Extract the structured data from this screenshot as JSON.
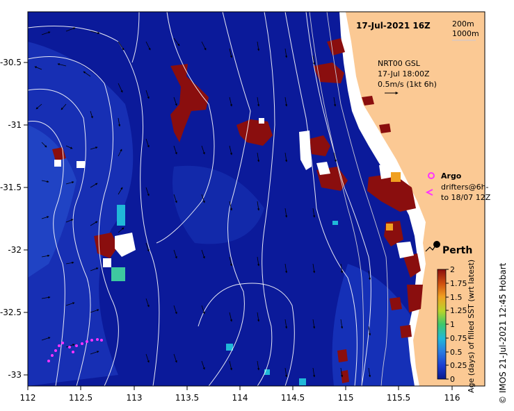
{
  "map": {
    "title": "17-Jul-2021 16Z",
    "x_ticks": [
      "112",
      "112.5",
      "113",
      "113.5",
      "114",
      "114.5",
      "115",
      "115.5",
      "116"
    ],
    "y_ticks": [
      "-30.5",
      "-31",
      "-31.5",
      "-32",
      "-32.5",
      "-33"
    ],
    "depth_contours": {
      "c200": "200m",
      "c1000": "1000m"
    },
    "current_legend": {
      "line1": "NRT00 GSL",
      "line2": "17-Jul 18:00Z",
      "line3": "0.5m/s (1kt 6h)"
    },
    "argo_label": "Argo",
    "drifter_label_1": "drifters@6h-",
    "drifter_label_2": "to 18/07 12Z",
    "city": "Perth",
    "credit": "©  IMOS 21-Jul-2021 12:45 Hobart",
    "colorbar": {
      "title": "Age (days) of filled SST (wrt latest)",
      "ticks": [
        "0",
        "0.25",
        "0.5",
        "0.75",
        "1",
        "1.25",
        "1.5",
        "1.75",
        "2"
      ]
    },
    "colors": {
      "ocean": "#0b1a9a",
      "ocean_light": "#1f3fc0",
      "land": "#fbc994",
      "old_data": "#8a0e0e",
      "argo": "#ff33ff"
    }
  }
}
